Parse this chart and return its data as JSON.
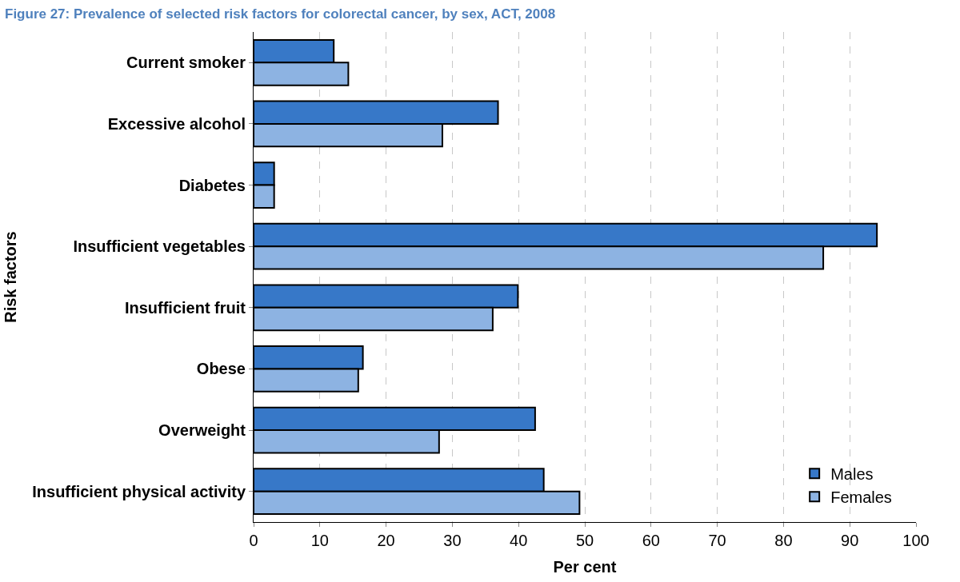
{
  "chart_data": {
    "type": "bar",
    "orientation": "horizontal",
    "title": "Figure 27: Prevalence of selected risk factors for colorectal cancer, by sex, ACT, 2008",
    "categories": [
      "Current smoker",
      "Excessive alcohol",
      "Diabetes",
      "Insufficient vegetables",
      "Insufficient fruit",
      "Obese",
      "Overweight",
      "Insufficient physical activity"
    ],
    "series": [
      {
        "name": "Males",
        "color": "#3778c8",
        "values": [
          12.1,
          36.9,
          3.1,
          94.1,
          39.9,
          16.5,
          42.5,
          43.8
        ]
      },
      {
        "name": "Females",
        "color": "#8db3e2",
        "values": [
          14.3,
          28.5,
          3.1,
          86.0,
          36.1,
          15.8,
          28.0,
          49.2
        ]
      }
    ],
    "xlim": [
      0,
      100
    ],
    "xticks": [
      0,
      10,
      20,
      30,
      40,
      50,
      60,
      70,
      80,
      90,
      100
    ],
    "xlabel": "Per cent",
    "ylabel": "Risk factors",
    "grid": "x",
    "legend": "bottom right"
  }
}
